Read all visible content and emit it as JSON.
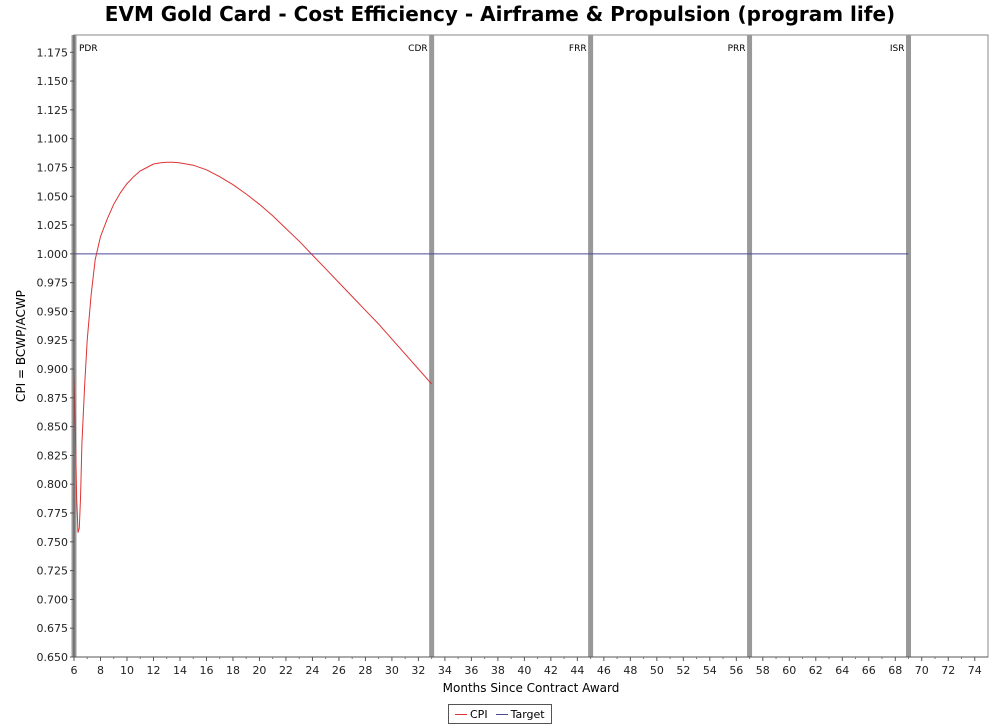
{
  "chart_data": {
    "type": "line",
    "title": "EVM Gold Card - Cost Efficiency - Airframe & Propulsion (program life)",
    "xlabel": "Months Since Contract Award",
    "ylabel": "CPI = BCWP/ACWP",
    "xlim": [
      6,
      75
    ],
    "ylim": [
      0.65,
      1.19
    ],
    "x_ticks": [
      6,
      8,
      10,
      12,
      14,
      16,
      18,
      20,
      22,
      24,
      26,
      28,
      30,
      32,
      34,
      36,
      38,
      40,
      42,
      44,
      46,
      48,
      50,
      52,
      54,
      56,
      58,
      60,
      62,
      64,
      66,
      68,
      70,
      72,
      74
    ],
    "y_ticks": [
      "0.650",
      "0.675",
      "0.700",
      "0.725",
      "0.750",
      "0.775",
      "0.800",
      "0.825",
      "0.850",
      "0.875",
      "0.900",
      "0.925",
      "0.950",
      "0.975",
      "1.000",
      "1.025",
      "1.050",
      "1.075",
      "1.100",
      "1.125",
      "1.150",
      "1.175"
    ],
    "milestones": [
      {
        "label": "PDR",
        "x": 6
      },
      {
        "label": "CDR",
        "x": 33
      },
      {
        "label": "FRR",
        "x": 45
      },
      {
        "label": "PRR",
        "x": 57
      },
      {
        "label": "ISR",
        "x": 69
      }
    ],
    "series": [
      {
        "name": "CPI",
        "color": "#dd3333",
        "x": [
          6.0,
          6.1,
          6.2,
          6.3,
          6.4,
          6.5,
          6.6,
          6.8,
          7.0,
          7.3,
          7.6,
          8.0,
          8.5,
          9.0,
          9.5,
          10,
          10.5,
          11,
          11.5,
          12,
          12.5,
          13,
          13.5,
          14,
          15,
          16,
          17,
          18,
          19,
          20,
          21,
          22,
          23,
          24,
          25,
          26,
          27,
          28,
          29,
          30,
          31,
          32,
          33
        ],
        "y": [
          0.895,
          0.85,
          0.79,
          0.758,
          0.762,
          0.79,
          0.835,
          0.885,
          0.925,
          0.965,
          0.995,
          1.015,
          1.03,
          1.043,
          1.053,
          1.061,
          1.067,
          1.072,
          1.075,
          1.078,
          1.079,
          1.0795,
          1.0795,
          1.079,
          1.077,
          1.073,
          1.067,
          1.06,
          1.052,
          1.043,
          1.033,
          1.022,
          1.011,
          0.999,
          0.987,
          0.975,
          0.963,
          0.951,
          0.939,
          0.926,
          0.913,
          0.9,
          0.887
        ]
      },
      {
        "name": "Target",
        "color": "#4a4a9a",
        "x": [
          6,
          69
        ],
        "y": [
          1.0,
          1.0
        ]
      }
    ]
  },
  "legend": {
    "cpi_label": "CPI",
    "target_label": "Target",
    "cpi_color": "#dd3333",
    "target_color": "#4a4a9a"
  }
}
